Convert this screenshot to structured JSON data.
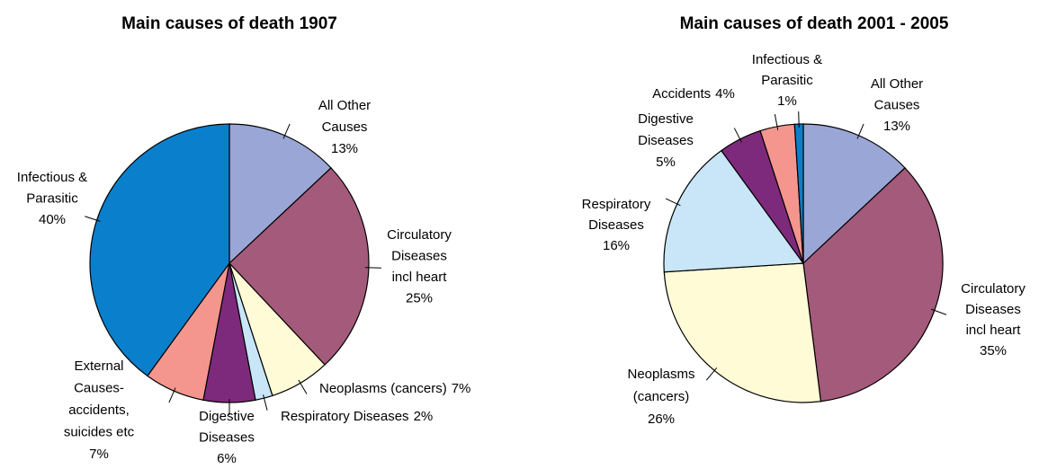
{
  "chart_data": [
    {
      "type": "pie",
      "title": "Main causes of death 1907",
      "categories": [
        "All Other\nCauses",
        "Circulatory\nDiseases\nincl heart",
        "Neoplasms (cancers)",
        "Respiratory  Diseases",
        "Digestive\nDiseases",
        "External\nCauses-\naccidents,\nsuicides etc",
        "Infectious &\nParasitic"
      ],
      "values": [
        13,
        25,
        7,
        2,
        6,
        7,
        40
      ],
      "value_labels": [
        "13%",
        "25%",
        "7%",
        "2%",
        "6%",
        "7%",
        "40%"
      ],
      "colors": [
        "#9aa6d6",
        "#a45a7a",
        "#fffbd6",
        "#c8e6f8",
        "#7e2a7c",
        "#f4968e",
        "#0a7fcc"
      ]
    },
    {
      "type": "pie",
      "title": "Main causes of death 2001 - 2005",
      "categories": [
        "All Other\nCauses",
        "Circulatory\nDiseases\nincl heart",
        "Neoplasms\n(cancers)",
        "Respiratory\nDiseases",
        "Digestive\nDiseases",
        "Accidents",
        "Infectious &\nParasitic"
      ],
      "values": [
        13,
        35,
        26,
        16,
        5,
        4,
        1
      ],
      "value_labels": [
        "13%",
        "35%",
        "26%",
        "16%",
        "5%",
        "4%",
        "1%"
      ],
      "colors": [
        "#9aa6d6",
        "#a45a7a",
        "#fffbd6",
        "#c8e6f8",
        "#7e2a7c",
        "#f4968e",
        "#0a7fcc"
      ]
    }
  ]
}
